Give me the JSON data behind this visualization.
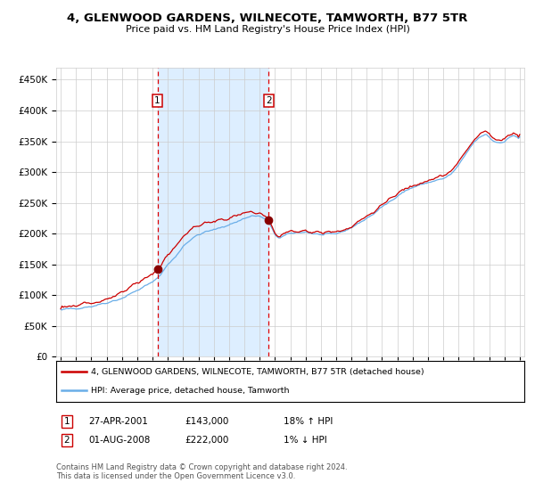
{
  "title": "4, GLENWOOD GARDENS, WILNECOTE, TAMWORTH, B77 5TR",
  "subtitle": "Price paid vs. HM Land Registry's House Price Index (HPI)",
  "legend_line1": "4, GLENWOOD GARDENS, WILNECOTE, TAMWORTH, B77 5TR (detached house)",
  "legend_line2": "HPI: Average price, detached house, Tamworth",
  "annotation1_date": "27-APR-2001",
  "annotation1_price": "£143,000",
  "annotation1_hpi": "18% ↑ HPI",
  "annotation2_date": "01-AUG-2008",
  "annotation2_price": "£222,000",
  "annotation2_hpi": "1% ↓ HPI",
  "footer": "Contains HM Land Registry data © Crown copyright and database right 2024.\nThis data is licensed under the Open Government Licence v3.0.",
  "sale1_date_x": 2001.32,
  "sale1_price": 143000,
  "sale2_date_x": 2008.58,
  "sale2_price": 222000,
  "hpi_color": "#6aaee8",
  "price_color": "#cc0000",
  "bg_shade_color": "#ddeeff",
  "marker_color": "#880000",
  "vline_color": "#dd0000",
  "ylim": [
    0,
    470000
  ],
  "xlim_start": 1994.7,
  "xlim_end": 2025.3,
  "background_color": "#ffffff",
  "grid_color": "#cccccc",
  "hpi_key_points": [
    [
      1995.0,
      76000
    ],
    [
      1996.0,
      79000
    ],
    [
      1997.0,
      82000
    ],
    [
      1998.0,
      88000
    ],
    [
      1999.0,
      95000
    ],
    [
      2000.0,
      108000
    ],
    [
      2001.0,
      121000
    ],
    [
      2001.5,
      133000
    ],
    [
      2002.0,
      150000
    ],
    [
      2002.5,
      162000
    ],
    [
      2003.0,
      180000
    ],
    [
      2003.5,
      191000
    ],
    [
      2004.0,
      198000
    ],
    [
      2004.5,
      203000
    ],
    [
      2005.0,
      206000
    ],
    [
      2005.5,
      210000
    ],
    [
      2006.0,
      215000
    ],
    [
      2006.5,
      219000
    ],
    [
      2007.0,
      225000
    ],
    [
      2007.5,
      229000
    ],
    [
      2008.0,
      228000
    ],
    [
      2008.5,
      222000
    ],
    [
      2009.0,
      198000
    ],
    [
      2009.3,
      193000
    ],
    [
      2009.6,
      196000
    ],
    [
      2010.0,
      200000
    ],
    [
      2010.5,
      202000
    ],
    [
      2011.0,
      203000
    ],
    [
      2011.5,
      200000
    ],
    [
      2012.0,
      198000
    ],
    [
      2012.5,
      198000
    ],
    [
      2013.0,
      200000
    ],
    [
      2013.5,
      204000
    ],
    [
      2014.0,
      210000
    ],
    [
      2014.5,
      217000
    ],
    [
      2015.0,
      225000
    ],
    [
      2015.5,
      233000
    ],
    [
      2016.0,
      243000
    ],
    [
      2016.5,
      252000
    ],
    [
      2017.0,
      262000
    ],
    [
      2017.5,
      269000
    ],
    [
      2018.0,
      275000
    ],
    [
      2018.5,
      279000
    ],
    [
      2019.0,
      283000
    ],
    [
      2019.5,
      286000
    ],
    [
      2020.0,
      289000
    ],
    [
      2020.5,
      296000
    ],
    [
      2021.0,
      310000
    ],
    [
      2021.5,
      330000
    ],
    [
      2022.0,
      348000
    ],
    [
      2022.5,
      358000
    ],
    [
      2022.8,
      362000
    ],
    [
      2023.0,
      357000
    ],
    [
      2023.3,
      350000
    ],
    [
      2023.6,
      348000
    ],
    [
      2024.0,
      350000
    ],
    [
      2024.3,
      355000
    ],
    [
      2024.6,
      360000
    ],
    [
      2024.9,
      356000
    ]
  ]
}
